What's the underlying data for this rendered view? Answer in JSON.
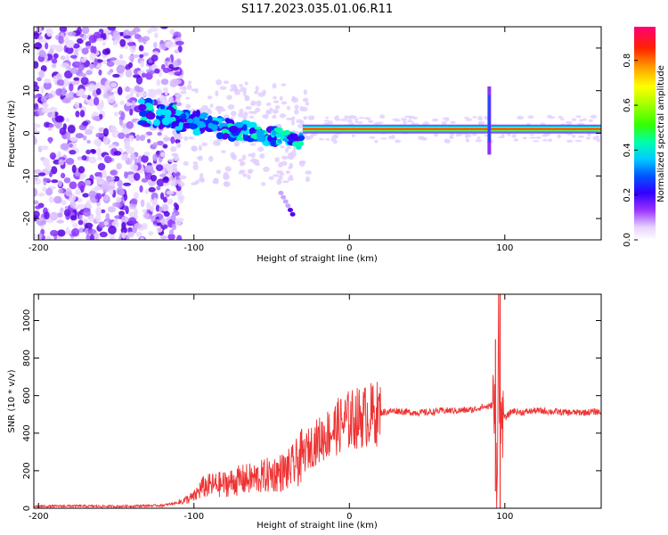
{
  "title": "S117.2023.035.01.06.R11",
  "chart_data": [
    {
      "type": "heatmap",
      "xlabel": "Height of straight line (km)",
      "ylabel": "Frequency (Hz)",
      "xlim": [
        -203,
        162
      ],
      "ylim": [
        -25,
        25
      ],
      "xticks": [
        -200,
        -100,
        0,
        100
      ],
      "yticks": [
        -20,
        -10,
        0,
        10,
        20
      ],
      "grid": false,
      "colorbar": {
        "label": "Normalized spectral amplitude",
        "range": [
          0,
          0.95
        ],
        "ticks": [
          "0.0",
          "0.2",
          "0.4",
          "0.6",
          "0.8"
        ],
        "colors": [
          "#ffffff",
          "#e0c8ff",
          "#9933ff",
          "#5500ee",
          "#0000ff",
          "#00ccff",
          "#00ff88",
          "#66ff00",
          "#ffff00",
          "#ffaa00",
          "#ff3300",
          "#ff0066"
        ]
      },
      "features": [
        {
          "desc": "scattered noise",
          "x_range": [
            -203,
            -110
          ],
          "freq_range": [
            -25,
            25
          ]
        },
        {
          "desc": "narrowing band",
          "x_range": [
            -130,
            -30
          ],
          "freq": [
            5,
            4,
            2,
            0,
            -2
          ]
        },
        {
          "desc": "strong carrier line",
          "x_range": [
            -30,
            162
          ],
          "freq": 1
        },
        {
          "desc": "spike",
          "x": 90,
          "freq_range": [
            -5,
            11
          ]
        }
      ]
    },
    {
      "type": "line",
      "xlabel": "Height of straight line (km)",
      "ylabel": "SNR (10 * v/v)",
      "xlim": [
        -203,
        162
      ],
      "ylim": [
        0,
        1140
      ],
      "xticks": [
        -200,
        -100,
        0,
        100
      ],
      "yticks": [
        0,
        200,
        400,
        600,
        800,
        1000
      ],
      "grid": false,
      "series": [
        {
          "color": "#ee3333",
          "x": [
            -203,
            -180,
            -150,
            -120,
            -110,
            -100,
            -95,
            -90,
            -80,
            -70,
            -60,
            -50,
            -40,
            -35,
            -30,
            -25,
            -20,
            -15,
            -10,
            -5,
            0,
            10,
            20,
            30,
            40,
            50,
            60,
            70,
            80,
            85,
            90,
            93,
            95,
            96,
            97,
            98,
            100,
            105,
            110,
            120,
            130,
            140,
            150,
            160,
            162
          ],
          "y": [
            10,
            12,
            10,
            15,
            30,
            60,
            110,
            120,
            130,
            150,
            160,
            180,
            200,
            230,
            280,
            330,
            360,
            390,
            420,
            450,
            470,
            490,
            510,
            520,
            510,
            510,
            520,
            520,
            525,
            540,
            540,
            560,
            120,
            1140,
            300,
            520,
            480,
            520,
            510,
            520,
            515,
            510,
            510,
            515,
            510
          ]
        }
      ]
    }
  ]
}
